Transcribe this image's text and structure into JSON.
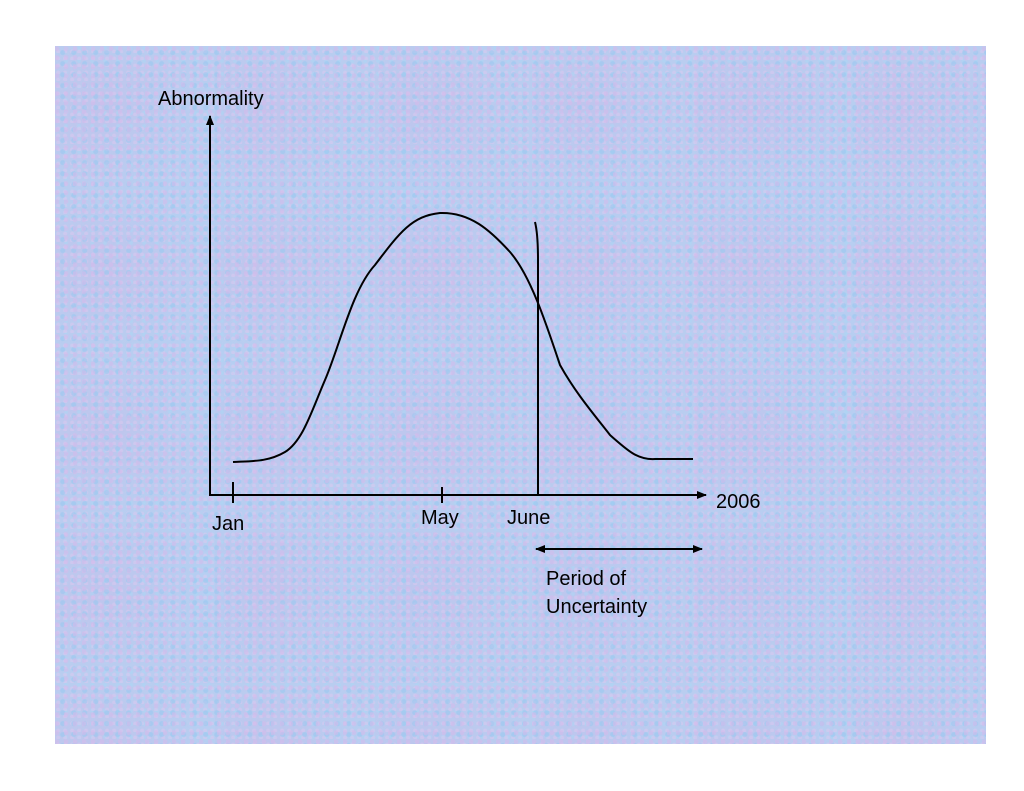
{
  "diagram": {
    "y_axis_label": "Abnormality",
    "x_axis_label": "2006",
    "x_ticks": [
      "Jan",
      "May",
      "June"
    ],
    "uncertainty_label_line1": "Period of",
    "uncertainty_label_line2": "Uncertainty"
  },
  "colors": {
    "background": "#b9cdf0",
    "ink": "#000000"
  }
}
